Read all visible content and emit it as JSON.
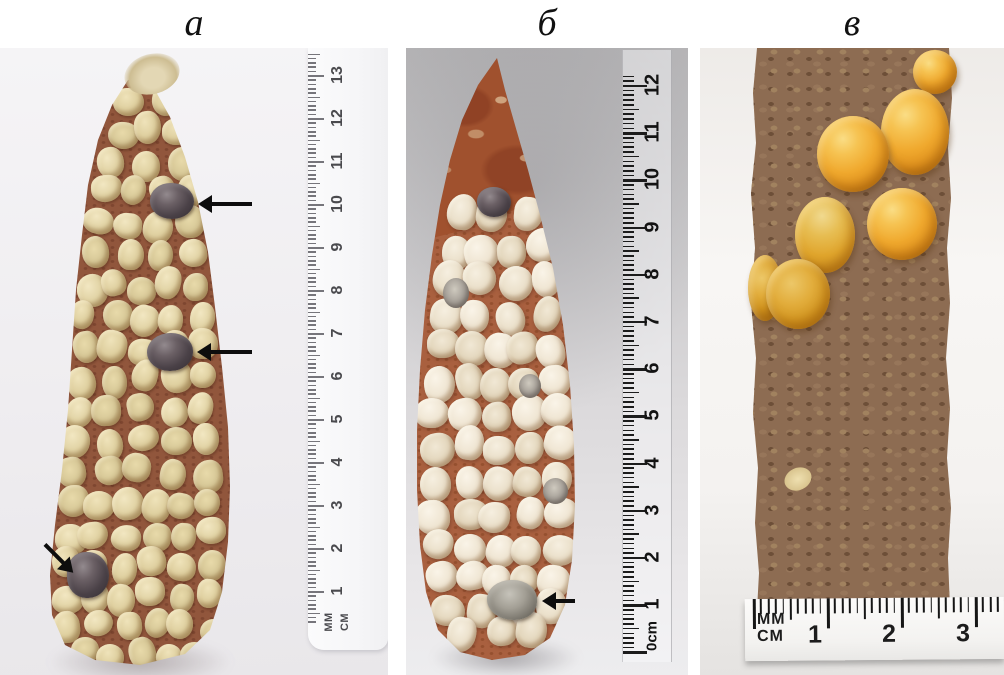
{
  "figure": {
    "type": "scientific-photo-figure",
    "subject": "maize cobs with kernels and dark (marked) kernels",
    "panels": [
      {
        "id": "a",
        "label": "а"
      },
      {
        "id": "b",
        "label": "б"
      },
      {
        "id": "c",
        "label": "в"
      }
    ]
  },
  "rulers": {
    "panel_a": {
      "orientation": "vertical",
      "numbers": [
        "13",
        "12",
        "11",
        "10",
        "9",
        "8",
        "7",
        "6",
        "5",
        "4",
        "3",
        "2",
        "1"
      ],
      "unit_line1": "MM",
      "unit_line2": "CM"
    },
    "panel_b": {
      "orientation": "vertical",
      "numbers": [
        "12",
        "11",
        "10",
        "9",
        "8",
        "7",
        "6",
        "5",
        "4",
        "3",
        "2",
        "1"
      ],
      "zero_label": "0cm"
    },
    "panel_c": {
      "orientation": "horizontal",
      "numbers": [
        "1",
        "2",
        "3"
      ],
      "unit_line1": "MM",
      "unit_line2": "CM"
    }
  },
  "annotations": {
    "panel_a_arrow_count": 3,
    "panel_b_arrow_count": 1,
    "arrow_meaning": "black marker arrows pointing at dark kernels"
  },
  "colors": {
    "panel_a_kernel": "#ddd0a4",
    "panel_a_cob_gap": "#91563c",
    "panel_b_kernel": "#ece3d2",
    "panel_b_cone": "#a0512e",
    "dark_kernel": "#463d41",
    "gray_kernel": "#8f8d86",
    "panel_c_cob": "#8d6c52",
    "panel_c_kernel": "#eda92d",
    "ruler_tick_dark": "#1c1c1c",
    "ruler_tick_soft": "#76757b"
  }
}
